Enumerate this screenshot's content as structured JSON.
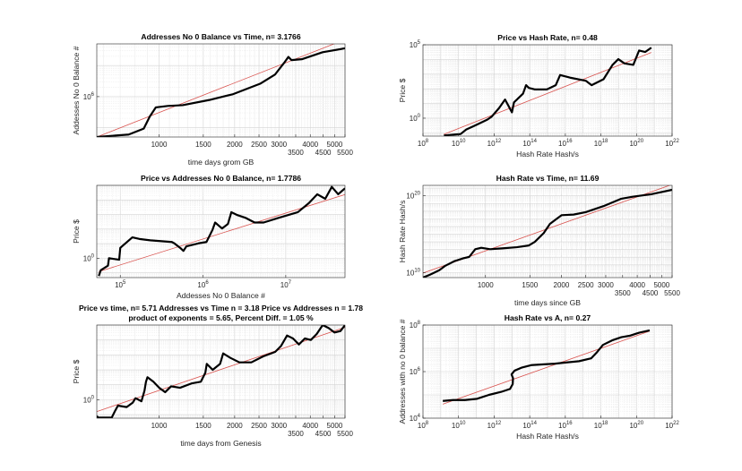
{
  "chart_data": [
    {
      "type": "line",
      "title": [
        "Addresses No 0 Balance vs Time, n= 3.1766"
      ],
      "xlabel": "time days grom GB",
      "ylabel": "Addesses No 0 Balance #",
      "xscale": "log",
      "yscale": "log",
      "xlim": [
        565,
        5500
      ],
      "ylim": [
        50000,
        50000000
      ],
      "grid": true,
      "xticks": [
        {
          "value": 1000,
          "label": "1000"
        },
        {
          "value": 1500,
          "label": "1500"
        },
        {
          "value": 2000,
          "label": "2000"
        },
        {
          "value": 2500,
          "label": "2500"
        },
        {
          "value": 3000,
          "label": "3000"
        },
        {
          "value": 3500,
          "label": "3500"
        },
        {
          "value": 4000,
          "label": "4000"
        },
        {
          "value": 4500,
          "label": "4500"
        },
        {
          "value": 5000,
          "label": "5000"
        },
        {
          "value": 5500,
          "label": "5500"
        }
      ],
      "yticks": [
        {
          "value": 1000000,
          "base": "10",
          "exp": "6"
        }
      ],
      "series_color": "#000000",
      "series": [
        [
          565,
          50000
        ],
        [
          757,
          60000
        ],
        [
          869,
          93000
        ],
        [
          919,
          230000
        ],
        [
          971,
          450000
        ],
        [
          1083,
          500000
        ],
        [
          1242,
          530000
        ],
        [
          1586,
          780000
        ],
        [
          1972,
          1200000
        ],
        [
          2525,
          2600000
        ],
        [
          2893,
          5100000
        ],
        [
          3142,
          12000000
        ],
        [
          3273,
          19000000
        ],
        [
          3367,
          15000000
        ],
        [
          3700,
          16000000
        ],
        [
          4480,
          27000000
        ],
        [
          5500,
          36000000
        ]
      ],
      "fit_color": "#d9534f",
      "fit": [
        [
          565,
          50000
        ],
        [
          5500,
          69000000
        ]
      ]
    },
    {
      "type": "scatter",
      "title": [
        "Price vs Hash Rate, n= 0.48"
      ],
      "xlabel": "Hash Rate Hash/s",
      "ylabel": "Price $",
      "xscale": "log",
      "yscale": "log",
      "xlim": [
        100000000.0,
        1e+22
      ],
      "ylim": [
        0.06,
        100000
      ],
      "grid": true,
      "xticks": [
        {
          "value": 100000000.0,
          "base": "10",
          "exp": "8"
        },
        {
          "value": 10000000000.0,
          "base": "10",
          "exp": "10"
        },
        {
          "value": 1000000000000.0,
          "base": "10",
          "exp": "12"
        },
        {
          "value": 100000000000000.0,
          "base": "10",
          "exp": "14"
        },
        {
          "value": 1e+16,
          "base": "10",
          "exp": "16"
        },
        {
          "value": 1e+18,
          "base": "10",
          "exp": "18"
        },
        {
          "value": 1e+20,
          "base": "10",
          "exp": "20"
        },
        {
          "value": 1e+22,
          "base": "10",
          "exp": "22"
        }
      ],
      "yticks": [
        {
          "value": 1,
          "base": "10",
          "exp": "0"
        },
        {
          "value": 100000,
          "base": "10",
          "exp": "5"
        }
      ],
      "series_color": "#000000",
      "series": [
        [
          1500000000.0,
          0.066
        ],
        [
          13000000000.0,
          0.083
        ],
        [
          27000000000.0,
          0.17
        ],
        [
          85000000000.0,
          0.32
        ],
        [
          410000000000.0,
          0.79
        ],
        [
          720000000000.0,
          1.26
        ],
        [
          1900000000000.0,
          4.9
        ],
        [
          4100000000000.0,
          18.6
        ],
        [
          10000000000000.0,
          2.5
        ],
        [
          13000000000000.0,
          12
        ],
        [
          19000000000000.0,
          18.6
        ],
        [
          42000000000000.0,
          47
        ],
        [
          62000000000000.0,
          178
        ],
        [
          89000000000000.0,
          115
        ],
        [
          190000000000000.0,
          91
        ],
        [
          910000000000000.0,
          91
        ],
        [
          2900000000000000.0,
          178
        ],
        [
          5100000000000000.0,
          870
        ],
        [
          2e+16,
          562
        ],
        [
          1.4e+17,
          355
        ],
        [
          3e+17,
          178
        ],
        [
          1.4e+18,
          447
        ],
        [
          4.5e+18,
          4270
        ],
        [
          9.5e+18,
          10500
        ],
        [
          2.1e+19,
          5370
        ],
        [
          6.6e+19,
          4270
        ],
        [
          1.4e+20,
          40700
        ],
        [
          3.1e+20,
          32400
        ],
        [
          6.8e+20,
          63100
        ]
      ],
      "fit_color": "#d9534f",
      "fit": [
        [
          1500000000.0,
          0.08
        ],
        [
          6.8e+20,
          30000
        ]
      ]
    },
    {
      "type": "line",
      "title": [
        "Price vs Addresses No 0 Balance, n= 1.7786"
      ],
      "xlabel": "Addesses No 0 Balance #",
      "ylabel": "Price $",
      "xscale": "log",
      "yscale": "log",
      "xlim": [
        52000,
        52000000
      ],
      "ylim": [
        0.047,
        100000
      ],
      "grid": true,
      "xticks": [
        {
          "value": 100000,
          "base": "10",
          "exp": "5"
        },
        {
          "value": 1000000,
          "base": "10",
          "exp": "6"
        },
        {
          "value": 10000000,
          "base": "10",
          "exp": "7"
        }
      ],
      "yticks": [
        {
          "value": 1,
          "base": "10",
          "exp": "0"
        }
      ],
      "series_color": "#000000",
      "series": [
        [
          55000,
          0.06
        ],
        [
          58000,
          0.15
        ],
        [
          71000,
          0.31
        ],
        [
          73000,
          1
        ],
        [
          97000,
          0.79
        ],
        [
          100000,
          5.1
        ],
        [
          110000,
          8.3
        ],
        [
          140000,
          27
        ],
        [
          170000,
          21
        ],
        [
          230000,
          17
        ],
        [
          420000,
          13
        ],
        [
          450000,
          10.5
        ],
        [
          530000,
          5.1
        ],
        [
          580000,
          3.2
        ],
        [
          630000,
          6.6
        ],
        [
          880000,
          10.5
        ],
        [
          1100000,
          13
        ],
        [
          1300000,
          87
        ],
        [
          1400000,
          282
        ],
        [
          1700000,
          110
        ],
        [
          2000000,
          224
        ],
        [
          2200000,
          1450
        ],
        [
          2600000,
          912
        ],
        [
          3300000,
          575
        ],
        [
          4200000,
          282
        ],
        [
          5400000,
          282
        ],
        [
          8100000,
          575
        ],
        [
          14000000,
          1450
        ],
        [
          19000000,
          6000
        ],
        [
          24000000,
          24500
        ],
        [
          30000000,
          12000
        ],
        [
          36000000,
          79000
        ],
        [
          43000000,
          24500
        ],
        [
          52000000,
          63000
        ]
      ],
      "fit_color": "#d9534f",
      "fit": [
        [
          55000,
          0.12
        ],
        [
          52000000,
          23400
        ]
      ]
    },
    {
      "type": "line",
      "title": [
        "Hash Rate vs Time, n= 11.69"
      ],
      "xlabel": "time days since GB",
      "ylabel": "Hash Rate Hash/s",
      "xscale": "log",
      "yscale": "log",
      "xlim": [
        565,
        5500
      ],
      "ylim": [
        2200000000.0,
        2.3e+21
      ],
      "grid": true,
      "xticks": [
        {
          "value": 1000,
          "label": "1000"
        },
        {
          "value": 1500,
          "label": "1500"
        },
        {
          "value": 2000,
          "label": "2000"
        },
        {
          "value": 2500,
          "label": "2500"
        },
        {
          "value": 3000,
          "label": "3000"
        },
        {
          "value": 3500,
          "label": "3500"
        },
        {
          "value": 4000,
          "label": "4000"
        },
        {
          "value": 4500,
          "label": "4500"
        },
        {
          "value": 5000,
          "label": "5000"
        },
        {
          "value": 5500,
          "label": "5500"
        }
      ],
      "yticks": [
        {
          "value": 10000000000.0,
          "base": "10",
          "exp": "10"
        },
        {
          "value": 1e+20,
          "base": "10",
          "exp": "20"
        }
      ],
      "series_color": "#000000",
      "series": [
        [
          565,
          2200000000.0
        ],
        [
          604,
          5400000000.0
        ],
        [
          656,
          20000000000.0
        ],
        [
          694,
          79000000000.0
        ],
        [
          752,
          300000000000.0
        ],
        [
          817,
          730000000000.0
        ],
        [
          862,
          1100000000000.0
        ],
        [
          911,
          11000000000000.0
        ],
        [
          962,
          17000000000000.0
        ],
        [
          1043,
          11000000000000.0
        ],
        [
          1163,
          14000000000000.0
        ],
        [
          1332,
          20000000000000.0
        ],
        [
          1487,
          34000000000000.0
        ],
        [
          1570,
          100000000000000.0
        ],
        [
          1703,
          1400000000000000.0
        ],
        [
          1800,
          2.1e+16
        ],
        [
          1898,
          7.9e+16
        ],
        [
          2006,
          3e+17
        ],
        [
          2237,
          3.6e+17
        ],
        [
          2497,
          7.4e+17
        ],
        [
          2938,
          4.5e+18
        ],
        [
          3460,
          4.2e+19
        ],
        [
          3860,
          7.8e+19
        ],
        [
          4540,
          1.6e+20
        ],
        [
          5500,
          6e+20
        ]
      ],
      "fit_color": "#d9534f",
      "fit": [
        [
          565,
          8500000000.0
        ],
        [
          5500,
          3e+21
        ]
      ]
    },
    {
      "type": "line",
      "title": [
        "Price vs time, n= 5.71 Addresses vs Time n = 3.18 Price vs Addresses n = 1.78",
        "product of exponents = 5.65, Percent Diff. = 1.05 %"
      ],
      "xlabel": "time days from Genesis",
      "ylabel": "Price $",
      "xscale": "log",
      "yscale": "log",
      "xlim": [
        565,
        5500
      ],
      "ylim": [
        0.058,
        100000
      ],
      "grid": true,
      "xticks": [
        {
          "value": 1000,
          "label": "1000"
        },
        {
          "value": 1500,
          "label": "1500"
        },
        {
          "value": 2000,
          "label": "2000"
        },
        {
          "value": 2500,
          "label": "2500"
        },
        {
          "value": 3000,
          "label": "3000"
        },
        {
          "value": 3500,
          "label": "3500"
        },
        {
          "value": 4000,
          "label": "4000"
        },
        {
          "value": 4500,
          "label": "4500"
        },
        {
          "value": 5000,
          "label": "5000"
        },
        {
          "value": 5500,
          "label": "5500"
        }
      ],
      "yticks": [
        {
          "value": 1,
          "base": "10",
          "exp": "0"
        }
      ],
      "series_color": "#000000",
      "series": [
        [
          565,
          0.08
        ],
        [
          573,
          0.063
        ],
        [
          648,
          0.063
        ],
        [
          666,
          0.16
        ],
        [
          686,
          0.4
        ],
        [
          743,
          0.32
        ],
        [
          785,
          0.63
        ],
        [
          806,
          1.26
        ],
        [
          851,
          0.79
        ],
        [
          875,
          4
        ],
        [
          887,
          16
        ],
        [
          899,
          32
        ],
        [
          949,
          16
        ],
        [
          1001,
          6.3
        ],
        [
          1058,
          3.2
        ],
        [
          1117,
          7.9
        ],
        [
          1212,
          6.3
        ],
        [
          1353,
          12.6
        ],
        [
          1467,
          16
        ],
        [
          1528,
          63
        ],
        [
          1549,
          251
        ],
        [
          1635,
          100
        ],
        [
          1750,
          251
        ],
        [
          1800,
          1260
        ],
        [
          1924,
          631
        ],
        [
          2089,
          316
        ],
        [
          2330,
          316
        ],
        [
          2597,
          794
        ],
        [
          2899,
          1585
        ],
        [
          3060,
          3981
        ],
        [
          3233,
          19950
        ],
        [
          3415,
          12600
        ],
        [
          3604,
          5012
        ],
        [
          3806,
          12600
        ],
        [
          4020,
          10000
        ],
        [
          4243,
          25100
        ],
        [
          4483,
          100000
        ],
        [
          4735,
          63100
        ],
        [
          4998,
          31600
        ],
        [
          5277,
          39800
        ],
        [
          5500,
          100000
        ]
      ],
      "fit_color": "#d9534f",
      "fit": [
        [
          565,
          0.16
        ],
        [
          5500,
          70000
        ]
      ]
    },
    {
      "type": "line",
      "title": [
        "Hash Rate vs A, n= 0.27"
      ],
      "xlabel": "Hash Rate Hash/s",
      "ylabel": "Addresses with no 0 balance #",
      "xscale": "log",
      "yscale": "log",
      "xlim": [
        100000000.0,
        1e+22
      ],
      "ylim": [
        10000,
        100000000
      ],
      "grid": true,
      "xticks": [
        {
          "value": 100000000.0,
          "base": "10",
          "exp": "8"
        },
        {
          "value": 10000000000.0,
          "base": "10",
          "exp": "10"
        },
        {
          "value": 1000000000000.0,
          "base": "10",
          "exp": "12"
        },
        {
          "value": 100000000000000.0,
          "base": "10",
          "exp": "14"
        },
        {
          "value": 1e+16,
          "base": "10",
          "exp": "16"
        },
        {
          "value": 1e+18,
          "base": "10",
          "exp": "18"
        },
        {
          "value": 1e+20,
          "base": "10",
          "exp": "20"
        },
        {
          "value": 1e+22,
          "base": "10",
          "exp": "22"
        }
      ],
      "yticks": [
        {
          "value": 10000,
          "base": "10",
          "exp": "4"
        },
        {
          "value": 1000000,
          "base": "10",
          "exp": "6"
        },
        {
          "value": 100000000,
          "base": "10",
          "exp": "8"
        }
      ],
      "series_color": "#000000",
      "series": [
        [
          1300000000.0,
          55000
        ],
        [
          4900000000.0,
          60000
        ],
        [
          23000000000.0,
          60000
        ],
        [
          110000000000.0,
          68000
        ],
        [
          510000000000.0,
          100000
        ],
        [
          2500000000000.0,
          135000
        ],
        [
          7800000000000.0,
          180000
        ],
        [
          11000000000000.0,
          290000
        ],
        [
          11500000000000.0,
          520000
        ],
        [
          9500000000000.0,
          760000
        ],
        [
          14000000000000.0,
          1100000
        ],
        [
          37000000000000.0,
          1500000
        ],
        [
          120000000000000.0,
          1900000
        ],
        [
          2600000000000000.0,
          2200000
        ],
        [
          5.9e+16,
          2800000
        ],
        [
          2.8e+17,
          3700000
        ],
        [
          6e+17,
          6800000
        ],
        [
          1.3e+18,
          14000000
        ],
        [
          4.3e+18,
          22000000
        ],
        [
          1.4e+19,
          30000000
        ],
        [
          4.4e+19,
          35000000
        ],
        [
          1.4e+20,
          47000000
        ],
        [
          5.5e+20,
          59000000
        ]
      ],
      "fit_color": "#d9534f",
      "fit": [
        [
          1300000000.0,
          40000
        ],
        [
          5.5e+20,
          55000000
        ]
      ]
    }
  ]
}
